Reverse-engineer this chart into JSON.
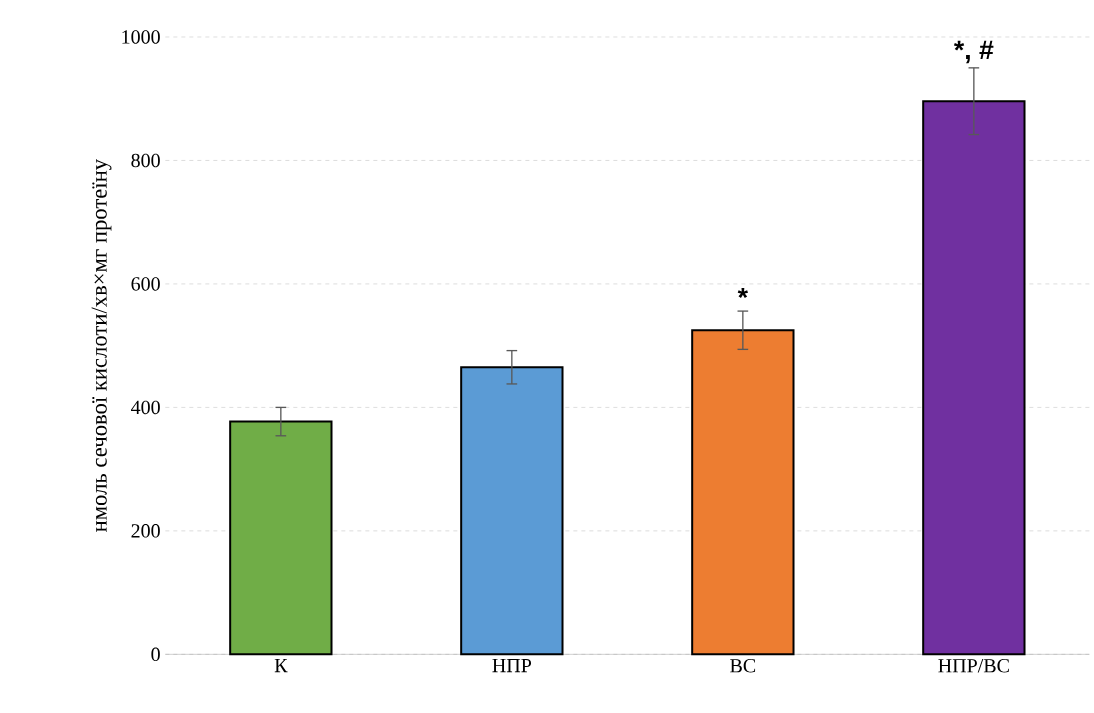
{
  "chart_data": {
    "type": "bar",
    "ylabel": "нмоль сечової кислоти/хв×мг протеїну",
    "categories": [
      "К",
      "НПР",
      "ВС",
      "НПР/ВС"
    ],
    "values": [
      377,
      465,
      525,
      896
    ],
    "errors": [
      23,
      27,
      31,
      54
    ],
    "colors": [
      "#70ad47",
      "#5b9bd5",
      "#ed7d31",
      "#7030a0"
    ],
    "ylim": [
      0,
      1000
    ],
    "yticks": [
      0,
      200,
      400,
      600,
      800,
      1000
    ],
    "grid": "y",
    "annotations": [
      {
        "text": "*",
        "x": "ВС",
        "y": 556
      },
      {
        "text": "*, #",
        "x": "НПР/ВС",
        "y": 950
      }
    ]
  }
}
